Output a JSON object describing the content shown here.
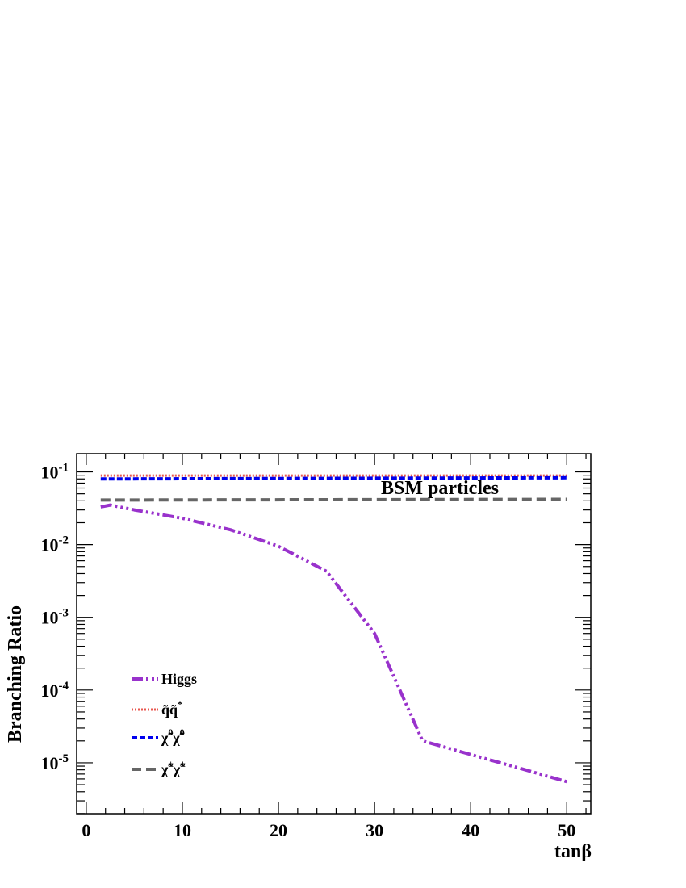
{
  "chart_data": {
    "type": "line",
    "xlabel": "tanβ",
    "ylabel": "Branching Ratio",
    "annotation": "BSM particles",
    "xlim": [
      -1,
      52.5
    ],
    "ylim_log10": [
      -5.7,
      -0.75
    ],
    "log_y": true,
    "grid": false,
    "legend_position": "bottom-left",
    "x_ticks": [
      0,
      10,
      20,
      30,
      40,
      50
    ],
    "x_tick_labels": [
      "0",
      "10",
      "20",
      "30",
      "40",
      "50"
    ],
    "y_ticks": [
      0.1,
      0.01,
      0.001,
      0.0001,
      1e-05
    ],
    "y_tick_labels": [
      {
        "base": "10",
        "exp": "-1"
      },
      {
        "base": "10",
        "exp": "-2"
      },
      {
        "base": "10",
        "exp": "-3"
      },
      {
        "base": "10",
        "exp": "-4"
      },
      {
        "base": "10",
        "exp": "-5"
      }
    ],
    "series": [
      {
        "name": "Higgs",
        "color": "#9932cc",
        "dash": "14,4,3,4,3,4,3,4",
        "x": [
          1.5,
          2.5,
          5,
          10,
          15,
          20,
          25,
          30,
          35,
          40,
          45,
          50
        ],
        "y": [
          0.033,
          0.035,
          0.03,
          0.023,
          0.016,
          0.0095,
          0.0043,
          0.0006,
          2e-05,
          1.3e-05,
          8.5e-06,
          5.5e-06
        ]
      },
      {
        "name": "q̃q̃*",
        "name_main": "q̃q̃",
        "name_sup": "*",
        "color": "#e8574f",
        "dash": "2,2",
        "x": [
          1.5,
          50
        ],
        "y": [
          0.089,
          0.089
        ]
      },
      {
        "name": "χ̃0χ̃0",
        "name_main": "χ̃",
        "name_sup": "0",
        "name_main2": "χ̃",
        "name_sup2": "0",
        "color": "#0000ee",
        "dash": "7,3",
        "x": [
          1.5,
          50
        ],
        "y": [
          0.08,
          0.083
        ]
      },
      {
        "name": "χ̃±χ̃±",
        "name_main": "χ̃",
        "name_sup": "±",
        "name_main2": "χ̃",
        "name_sup2": "±",
        "color": "#666666",
        "dash": "12,6",
        "x": [
          1.5,
          50
        ],
        "y": [
          0.041,
          0.042
        ]
      }
    ]
  }
}
